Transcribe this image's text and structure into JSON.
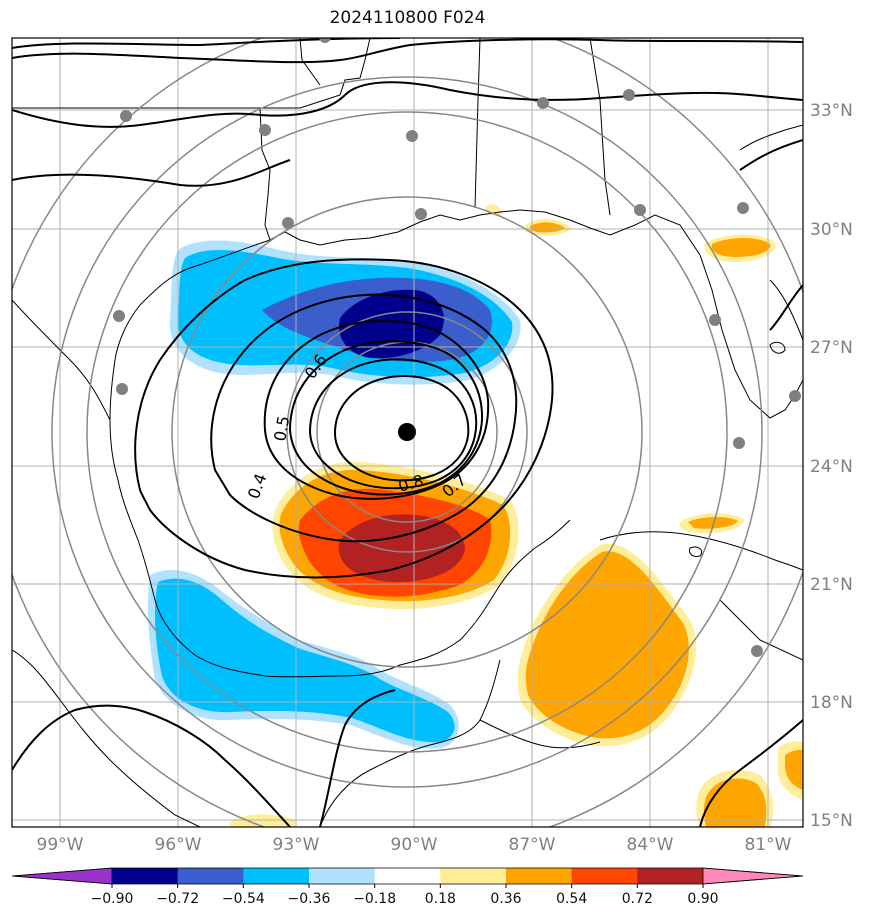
{
  "title": "2024110800 F024",
  "lat_labels": [
    "33°N",
    "30°N",
    "27°N",
    "24°N",
    "21°N",
    "18°N",
    "15°N"
  ],
  "lon_labels": [
    "99°W",
    "96°W",
    "93°W",
    "90°W",
    "87°W",
    "84°W",
    "81°W"
  ],
  "contour_labels": [
    "0.4",
    "0.5",
    "0.6",
    "0.7",
    "0.8"
  ],
  "colorbar": {
    "tick_labels": [
      "−0.90",
      "−0.72",
      "−0.54",
      "−0.36",
      "−0.18",
      "0.18",
      "0.36",
      "0.54",
      "0.72",
      "0.90"
    ],
    "colors": [
      "#9933cc",
      "#00008b",
      "#3a5fcd",
      "#00bfff",
      "#b0e2ff",
      "#ffffff",
      "#ffee99",
      "#ffa500",
      "#ff4500",
      "#b22222",
      "#ff88bb"
    ]
  },
  "center_marker": "storm-center",
  "colors": {
    "grid": "#b0b0b0",
    "range_ring": "#888888",
    "station": "#808080"
  }
}
